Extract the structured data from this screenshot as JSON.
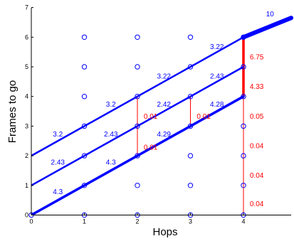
{
  "chart_data": {
    "type": "scatter",
    "xlabel": "Hops",
    "ylabel": "Frames to go",
    "xlim": [
      0,
      4.9
    ],
    "ylim": [
      0,
      7
    ],
    "x_ticks": [
      "0",
      "1",
      "2",
      "3",
      "4"
    ],
    "y_ticks": [
      "0",
      "1",
      "2",
      "3",
      "4",
      "5",
      "6",
      "7"
    ],
    "grid": false,
    "colors": {
      "blue": "#0000ff",
      "red": "#ff0000",
      "axis": "#000000"
    },
    "state_points": [
      [
        0,
        0
      ],
      [
        1,
        0
      ],
      [
        2,
        0
      ],
      [
        3,
        0
      ],
      [
        4,
        0
      ],
      [
        1,
        1
      ],
      [
        2,
        1
      ],
      [
        3,
        1
      ],
      [
        4,
        1
      ],
      [
        1,
        2
      ],
      [
        2,
        2
      ],
      [
        3,
        2
      ],
      [
        4,
        2
      ],
      [
        1,
        3
      ],
      [
        2,
        3
      ],
      [
        3,
        3
      ],
      [
        4,
        3
      ],
      [
        1,
        4
      ],
      [
        2,
        4
      ],
      [
        3,
        4
      ],
      [
        4,
        4
      ],
      [
        1,
        5
      ],
      [
        2,
        5
      ],
      [
        3,
        5
      ],
      [
        4,
        5
      ],
      [
        1,
        6
      ],
      [
        2,
        6
      ],
      [
        3,
        6
      ],
      [
        4,
        6
      ]
    ],
    "blue_lines": [
      {
        "points": [
          [
            0,
            0
          ],
          [
            4,
            4
          ]
        ],
        "width": "thick"
      },
      {
        "points": [
          [
            0,
            1
          ],
          [
            4,
            5
          ]
        ],
        "width": "medium"
      },
      {
        "points": [
          [
            0,
            2
          ],
          [
            4,
            6
          ]
        ],
        "width": "medium"
      },
      {
        "points": [
          [
            4,
            6
          ],
          [
            4.9,
            6.65
          ]
        ],
        "width": "extra-thick"
      }
    ],
    "red_lines": [
      {
        "points": [
          [
            2,
            2
          ],
          [
            2,
            4
          ]
        ],
        "width": "thin"
      },
      {
        "points": [
          [
            3,
            3
          ],
          [
            3,
            4
          ]
        ],
        "width": "thin"
      },
      {
        "points": [
          [
            4,
            0
          ],
          [
            4,
            4
          ]
        ],
        "width": "thin"
      },
      {
        "points": [
          [
            4,
            4
          ],
          [
            4,
            6
          ]
        ],
        "width": "thick"
      }
    ],
    "blue_labels": [
      {
        "text": "4.3",
        "x": 0.5,
        "y": 0.8
      },
      {
        "text": "2.43",
        "x": 0.5,
        "y": 1.8
      },
      {
        "text": "3.2",
        "x": 0.5,
        "y": 2.75
      },
      {
        "text": "4.3",
        "x": 1.5,
        "y": 1.8
      },
      {
        "text": "2.43",
        "x": 1.5,
        "y": 2.75
      },
      {
        "text": "3.2",
        "x": 1.5,
        "y": 3.75
      },
      {
        "text": "4.29",
        "x": 2.5,
        "y": 2.75
      },
      {
        "text": "2.42",
        "x": 2.5,
        "y": 3.75
      },
      {
        "text": "3.22",
        "x": 2.5,
        "y": 4.7
      },
      {
        "text": "4.28",
        "x": 3.5,
        "y": 3.75
      },
      {
        "text": "2.43",
        "x": 3.5,
        "y": 4.7
      },
      {
        "text": "3.22",
        "x": 3.5,
        "y": 5.7
      },
      {
        "text": "10",
        "x": 4.5,
        "y": 6.8
      }
    ],
    "red_labels": [
      {
        "text": "0.01",
        "x": 2.25,
        "y": 3.35
      },
      {
        "text": "0.01",
        "x": 2.25,
        "y": 2.3
      },
      {
        "text": "0.01",
        "x": 3.25,
        "y": 3.35
      },
      {
        "text": "6.75",
        "x": 4.25,
        "y": 5.35
      },
      {
        "text": "4.33",
        "x": 4.25,
        "y": 4.35
      },
      {
        "text": "0.05",
        "x": 4.25,
        "y": 3.35
      },
      {
        "text": "0.04",
        "x": 4.25,
        "y": 2.35
      },
      {
        "text": "0.04",
        "x": 4.25,
        "y": 1.35
      },
      {
        "text": "0.04",
        "x": 4.25,
        "y": 0.4
      }
    ]
  }
}
